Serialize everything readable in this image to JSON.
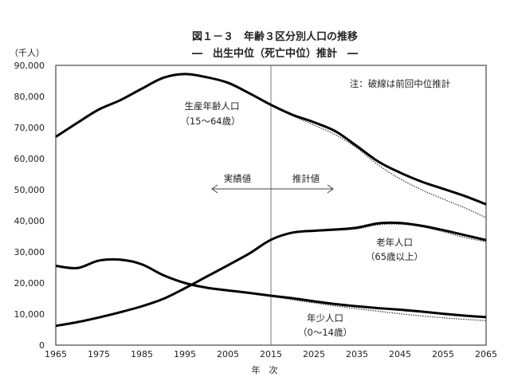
{
  "chart_data": {
    "type": "line",
    "title": "図１－３　年齢３区分別人口の推移",
    "subtitle": "―　出生中位（死亡中位）推計　―",
    "ylabel": "（千人）",
    "xlabel": "年　次",
    "ylim": [
      0,
      90000
    ],
    "xlim": [
      1965,
      2065
    ],
    "yticks": [
      0,
      10000,
      20000,
      30000,
      40000,
      50000,
      60000,
      70000,
      80000,
      90000
    ],
    "ytick_labels": [
      "0",
      "10,000",
      "20,000",
      "30,000",
      "40,000",
      "50,000",
      "60,000",
      "70,000",
      "80,000",
      "90,000"
    ],
    "xticks": [
      "1965",
      "1975",
      "1985",
      "1995",
      "2005",
      "2015",
      "2025",
      "2035",
      "2045",
      "2055",
      "2065"
    ],
    "divider_year": 2015,
    "annotations": {
      "note": "注：破線は前回中位推計",
      "actual": "実績値",
      "projected": "推計値"
    },
    "x": [
      1965,
      1970,
      1975,
      1980,
      1985,
      1990,
      1995,
      2000,
      2005,
      2010,
      2015,
      2020,
      2025,
      2030,
      2035,
      2040,
      2045,
      2050,
      2055,
      2060,
      2065
    ],
    "series": [
      {
        "name": "生産年齢人口",
        "sub": "（15～64歳）",
        "style": "solid",
        "values": [
          67000,
          71500,
          75800,
          78800,
          82500,
          86000,
          87200,
          86200,
          84400,
          81000,
          77300,
          74100,
          71700,
          68800,
          64000,
          59000,
          55500,
          52600,
          50300,
          48000,
          45300
        ]
      },
      {
        "name": "老年人口",
        "sub": "（65歳以上）",
        "style": "solid",
        "values": [
          6200,
          7400,
          8900,
          10600,
          12500,
          14900,
          18300,
          22000,
          25700,
          29500,
          33900,
          36200,
          36800,
          37200,
          37800,
          39200,
          39300,
          38400,
          37000,
          35400,
          33800
        ]
      },
      {
        "name": "年少人口",
        "sub": "（0～14歳）",
        "style": "solid",
        "values": [
          25500,
          24800,
          27200,
          27500,
          26000,
          22500,
          20000,
          18500,
          17600,
          16800,
          15900,
          15100,
          14100,
          13200,
          12500,
          11900,
          11400,
          10800,
          10100,
          9500,
          9000
        ]
      }
    ],
    "previous_projection": {
      "x": [
        2015,
        2020,
        2025,
        2030,
        2035,
        2040,
        2045,
        2050,
        2055,
        2060,
        2065
      ],
      "series": [
        {
          "name": "生産年齢人口（前回）",
          "values": [
            77300,
            73800,
            70800,
            67700,
            63400,
            57900,
            53500,
            50000,
            47000,
            44200,
            41000
          ]
        },
        {
          "name": "老年人口（前回）",
          "values": [
            33900,
            36100,
            36600,
            36900,
            37400,
            38700,
            38900,
            38100,
            36500,
            34600,
            33300
          ]
        },
        {
          "name": "年少人口（前回）",
          "values": [
            15800,
            14600,
            13600,
            12600,
            11700,
            10900,
            10100,
            9400,
            8800,
            8300,
            7900
          ]
        }
      ]
    }
  }
}
